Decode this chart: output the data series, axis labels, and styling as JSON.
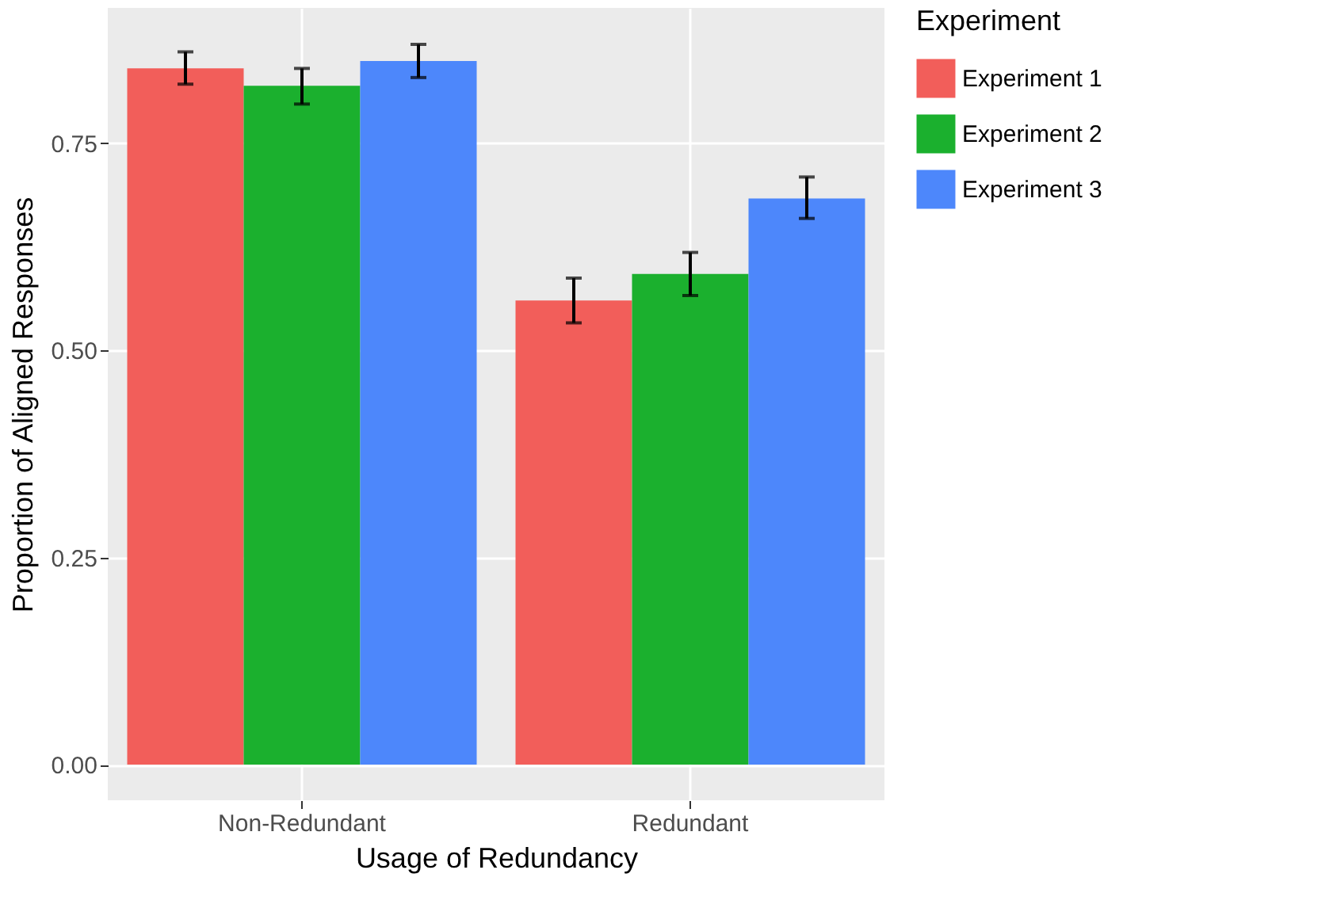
{
  "chart_data": {
    "type": "bar",
    "xlabel": "Usage of Redundancy",
    "ylabel": "Proportion of Aligned Responses",
    "legend_title": "Experiment",
    "categories": [
      "Non-Redundant",
      "Redundant"
    ],
    "series": [
      {
        "name": "Experiment 1",
        "color": "#f25e5a",
        "values": [
          0.84,
          0.56
        ],
        "errors": [
          [
            0.821,
            0.86
          ],
          [
            0.533,
            0.587
          ]
        ]
      },
      {
        "name": "Experiment 2",
        "color": "#1bb02e",
        "values": [
          0.819,
          0.592
        ],
        "errors": [
          [
            0.797,
            0.84
          ],
          [
            0.566,
            0.618
          ]
        ]
      },
      {
        "name": "Experiment 3",
        "color": "#4d87fb",
        "values": [
          0.849,
          0.683
        ],
        "errors": [
          [
            0.829,
            0.869
          ],
          [
            0.659,
            0.709
          ]
        ]
      }
    ],
    "ylim": [
      -0.043,
      0.913
    ],
    "yticks": [
      {
        "value": 0,
        "label": "0.00"
      },
      {
        "value": 0.25,
        "label": "0.25"
      },
      {
        "value": 0.5,
        "label": "0.50"
      },
      {
        "value": 0.75,
        "label": "0.75"
      }
    ],
    "grid": true,
    "legend": "right"
  }
}
